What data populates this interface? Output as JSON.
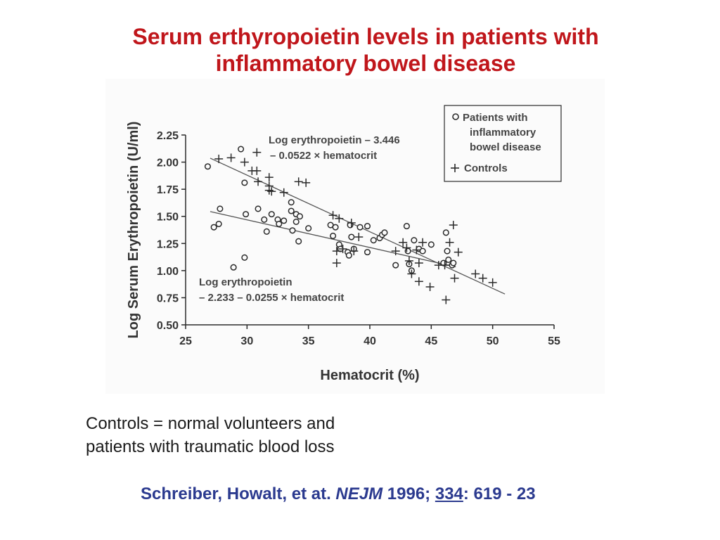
{
  "slide": {
    "title_line1": "Serum erthyropoietin levels in patients with",
    "title_line2": "inflammatory bowel disease",
    "caption_line1": "Controls = normal volunteers and",
    "caption_line2": "patients with traumatic blood loss",
    "citation": {
      "authors": "Schreiber, Howalt, et at.",
      "journal": "NEJM",
      "year": "1996;",
      "volume": "334",
      "pages": ": 619 - 23"
    }
  },
  "colors": {
    "title": "#c0161b",
    "citation": "#2b3a8f",
    "ink": "#2a2a2a"
  },
  "chart_data": {
    "type": "scatter",
    "title": "",
    "xlabel": "Hematocrit (%)",
    "ylabel": "Log Serum Erythropoietin (U/ml)",
    "xlim": [
      25,
      55
    ],
    "ylim": [
      0.5,
      2.25
    ],
    "xticks": [
      25,
      30,
      35,
      40,
      45,
      50,
      55
    ],
    "yticks": [
      0.5,
      0.75,
      1.0,
      1.25,
      1.5,
      1.75,
      2.0,
      2.25
    ],
    "xtick_labels": [
      "25",
      "30",
      "35",
      "40",
      "45",
      "50",
      "55"
    ],
    "ytick_labels": [
      "0.50",
      "0.75",
      "1.00",
      "1.25",
      "1.50",
      "1.75",
      "2.00",
      "2.25"
    ],
    "legend": {
      "position": "top-right",
      "ibd_label_lines": [
        "Patients with",
        "inflammatory",
        "bowel disease"
      ],
      "controls_label": "Controls"
    },
    "annotations": {
      "controls_eq_line1": "Log erythropoietin – 3.446",
      "controls_eq_line2": "– 0.0522 × hematocrit",
      "ibd_eq_line1": "Log erythropoietin",
      "ibd_eq_line2": "– 2.233 – 0.0255 × hematocrit"
    },
    "series": [
      {
        "name": "Patients with inflammatory bowel disease",
        "marker": "circle",
        "fit": {
          "intercept": 2.233,
          "slope": -0.0255,
          "x_range": [
            27,
            47
          ]
        },
        "points": [
          [
            26.8,
            1.96
          ],
          [
            27.3,
            1.4
          ],
          [
            27.7,
            1.43
          ],
          [
            27.8,
            1.57
          ],
          [
            28.9,
            1.03
          ],
          [
            29.5,
            2.12
          ],
          [
            29.8,
            1.81
          ],
          [
            29.8,
            1.12
          ],
          [
            29.9,
            1.52
          ],
          [
            30.9,
            1.57
          ],
          [
            31.4,
            1.47
          ],
          [
            31.6,
            1.36
          ],
          [
            32.0,
            1.52
          ],
          [
            32.5,
            1.47
          ],
          [
            32.6,
            1.43
          ],
          [
            33.0,
            1.46
          ],
          [
            33.6,
            1.63
          ],
          [
            33.6,
            1.55
          ],
          [
            33.7,
            1.37
          ],
          [
            34.0,
            1.52
          ],
          [
            34.0,
            1.45
          ],
          [
            34.2,
            1.27
          ],
          [
            34.3,
            1.5
          ],
          [
            35.0,
            1.39
          ],
          [
            36.8,
            1.42
          ],
          [
            37.0,
            1.32
          ],
          [
            37.2,
            1.4
          ],
          [
            37.5,
            1.24
          ],
          [
            37.6,
            1.2
          ],
          [
            38.2,
            1.17
          ],
          [
            38.3,
            1.14
          ],
          [
            38.4,
            1.42
          ],
          [
            38.5,
            1.31
          ],
          [
            38.7,
            1.2
          ],
          [
            39.2,
            1.4
          ],
          [
            39.8,
            1.41
          ],
          [
            39.8,
            1.17
          ],
          [
            40.3,
            1.28
          ],
          [
            40.8,
            1.3
          ],
          [
            41.0,
            1.33
          ],
          [
            41.2,
            1.35
          ],
          [
            42.1,
            1.05
          ],
          [
            43.0,
            1.41
          ],
          [
            43.1,
            1.18
          ],
          [
            43.2,
            1.06
          ],
          [
            43.4,
            1.0
          ],
          [
            43.6,
            1.28
          ],
          [
            44.0,
            1.2
          ],
          [
            44.3,
            1.18
          ],
          [
            45.0,
            1.24
          ],
          [
            46.0,
            1.07
          ],
          [
            46.2,
            1.35
          ],
          [
            46.3,
            1.18
          ],
          [
            46.4,
            1.1
          ],
          [
            46.7,
            1.05
          ],
          [
            46.8,
            1.07
          ]
        ]
      },
      {
        "name": "Controls",
        "marker": "plus",
        "fit": {
          "intercept": 3.446,
          "slope": -0.0522,
          "x_range": [
            27,
            51
          ]
        },
        "points": [
          [
            27.7,
            2.03
          ],
          [
            28.7,
            2.04
          ],
          [
            29.8,
            2.0
          ],
          [
            30.4,
            1.92
          ],
          [
            30.8,
            1.92
          ],
          [
            30.8,
            2.09
          ],
          [
            30.9,
            1.82
          ],
          [
            31.8,
            1.86
          ],
          [
            31.8,
            1.78
          ],
          [
            31.8,
            1.74
          ],
          [
            32.0,
            1.73
          ],
          [
            33.0,
            1.72
          ],
          [
            34.2,
            1.82
          ],
          [
            34.8,
            1.81
          ],
          [
            37.0,
            1.51
          ],
          [
            37.5,
            1.48
          ],
          [
            37.3,
            1.18
          ],
          [
            37.3,
            1.07
          ],
          [
            37.8,
            1.2
          ],
          [
            38.5,
            1.44
          ],
          [
            38.7,
            1.18
          ],
          [
            39.1,
            1.31
          ],
          [
            42.1,
            1.18
          ],
          [
            42.7,
            1.26
          ],
          [
            43.0,
            1.21
          ],
          [
            43.2,
            1.09
          ],
          [
            43.4,
            0.97
          ],
          [
            43.8,
            1.19
          ],
          [
            44.0,
            1.07
          ],
          [
            44.0,
            0.9
          ],
          [
            44.3,
            1.26
          ],
          [
            44.9,
            0.85
          ],
          [
            45.6,
            1.05
          ],
          [
            46.1,
            1.05
          ],
          [
            46.2,
            0.73
          ],
          [
            46.5,
            1.26
          ],
          [
            46.8,
            1.42
          ],
          [
            46.9,
            0.93
          ],
          [
            47.2,
            1.17
          ],
          [
            48.6,
            0.97
          ],
          [
            49.2,
            0.93
          ],
          [
            50.0,
            0.89
          ]
        ]
      }
    ]
  }
}
